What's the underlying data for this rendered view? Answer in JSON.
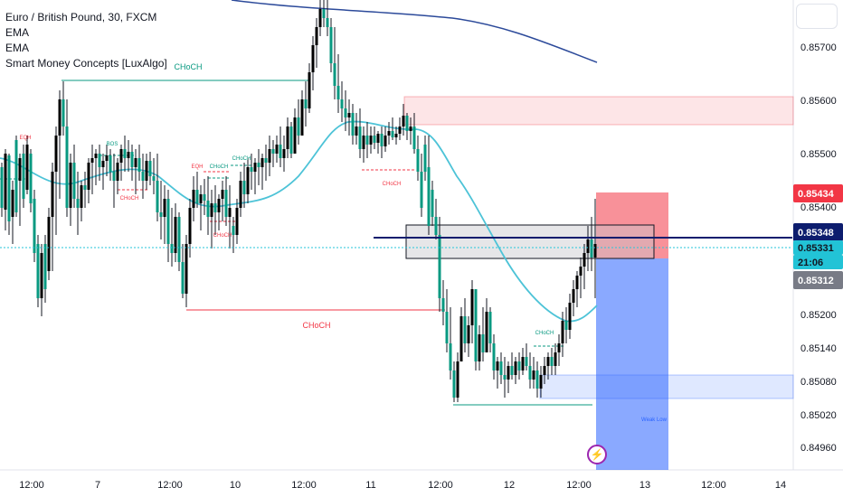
{
  "header": {
    "symbol_line": "Euro / British Pound, 30, FXCM",
    "indicators": [
      "EMA",
      "EMA",
      "Smart Money Concepts [LuxAlgo]"
    ]
  },
  "icons": {
    "corner": "settings-square-icon",
    "alert": "lightning-bolt-icon"
  },
  "colors": {
    "bull": "#089981",
    "bear": "#f23645",
    "ema_short": "#4dc3d7",
    "ema_long": "#2c4a9a",
    "price_line": "#0d1d6e",
    "stop_zone": "#f23645",
    "target_zone": "#2962ff"
  },
  "chart_data": {
    "type": "candlestick",
    "y_axis": {
      "range": [
        0.8493,
        0.8577
      ],
      "ticks": [
        "0.85700",
        "0.85600",
        "0.85500",
        "0.85400",
        "0.85200",
        "0.85140",
        "0.85080",
        "0.85020",
        "0.84960"
      ]
    },
    "x_axis": {
      "ticks": [
        "12:00",
        "7",
        "12:00",
        "10",
        "12:00",
        "11",
        "12:00",
        "12",
        "12:00",
        "13",
        "12:00",
        "14"
      ]
    },
    "price_labels": [
      {
        "value": "0.85434",
        "style": "red"
      },
      {
        "value": "0.85348",
        "style": "navy"
      },
      {
        "value": "0.85331",
        "style": "teal"
      },
      {
        "value": "21:06",
        "style": "teal-sub"
      },
      {
        "value": "0.85312",
        "style": "gray"
      }
    ],
    "structure_labels": [
      "CHoCH",
      "EQH",
      "BOS",
      "CHoCH",
      "EQH",
      "CHoCH",
      "CHoCH",
      "CHoCH",
      "CHoCH",
      "CHoCH",
      "CHoCH",
      "Weak Low"
    ]
  }
}
